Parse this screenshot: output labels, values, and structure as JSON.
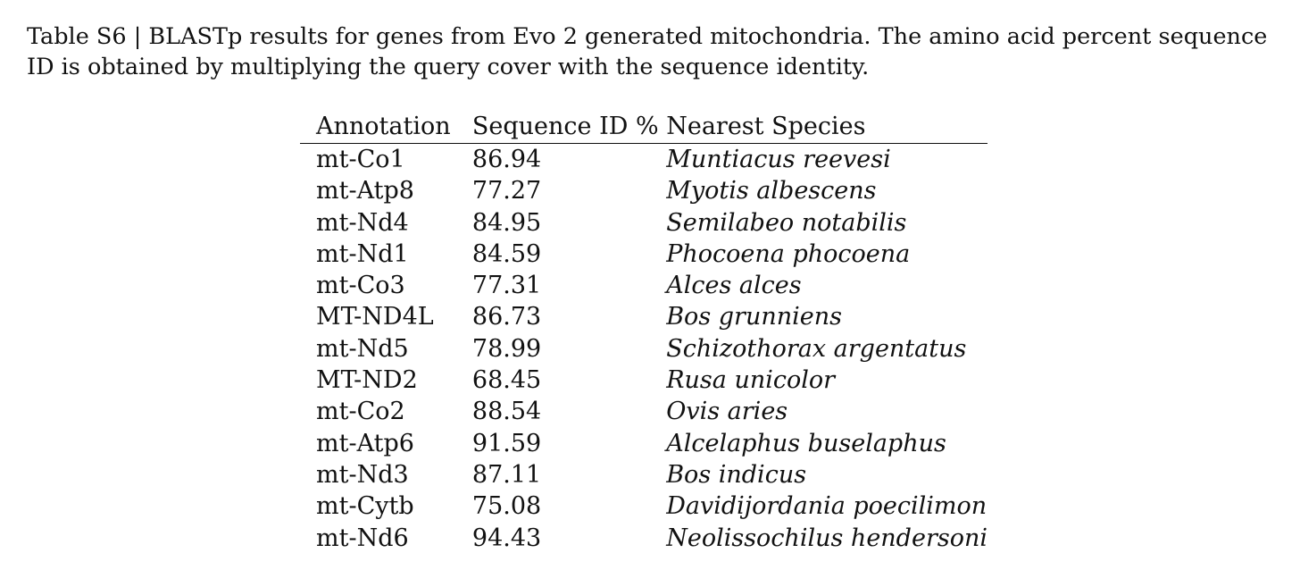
{
  "caption": "Table S6 | BLASTp results for genes from Evo 2 generated mitochondria. The amino acid percent sequence ID is obtained by multiplying the query cover with the sequence identity.",
  "table": {
    "headers": [
      "Annotation",
      "Sequence ID %",
      "Nearest Species"
    ],
    "rows": [
      [
        "mt-Co1",
        "86.94",
        "Muntiacus reevesi"
      ],
      [
        "mt-Atp8",
        "77.27",
        "Myotis albescens"
      ],
      [
        "mt-Nd4",
        "84.95",
        "Semilabeo notabilis"
      ],
      [
        "mt-Nd1",
        "84.59",
        "Phocoena phocoena"
      ],
      [
        "mt-Co3",
        "77.31",
        "Alces alces"
      ],
      [
        "MT-ND4L",
        "86.73",
        "Bos grunniens"
      ],
      [
        "mt-Nd5",
        "78.99",
        "Schizothorax argentatus"
      ],
      [
        "MT-ND2",
        "68.45",
        "Rusa unicolor"
      ],
      [
        "mt-Co2",
        "88.54",
        "Ovis aries"
      ],
      [
        "mt-Atp6",
        "91.59",
        "Alcelaphus buselaphus"
      ],
      [
        "mt-Nd3",
        "87.11",
        "Bos indicus"
      ],
      [
        "mt-Cytb",
        "75.08",
        "Davidijordania poecilimon"
      ],
      [
        "mt-Nd6",
        "94.43",
        "Neolissochilus hendersoni"
      ]
    ]
  }
}
